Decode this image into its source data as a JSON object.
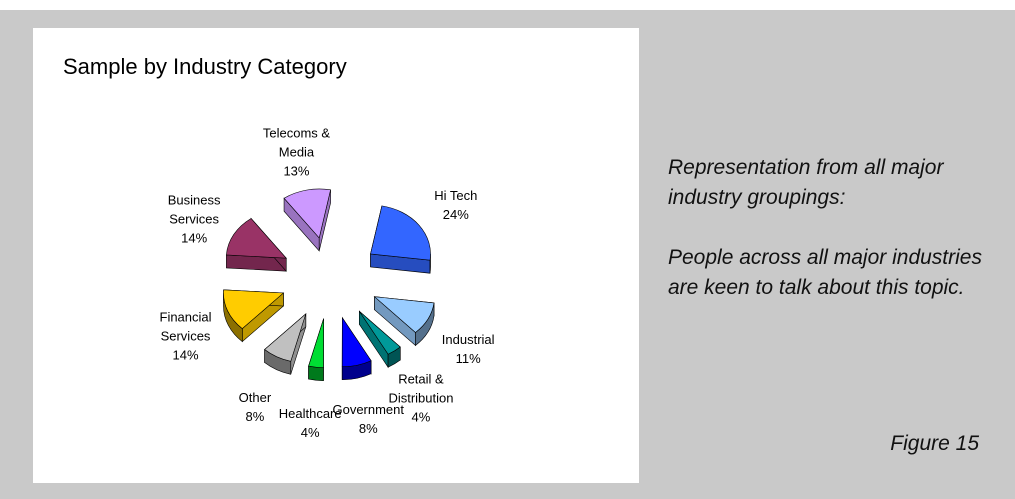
{
  "chart_data": {
    "type": "pie",
    "title": "Sample by Industry Category",
    "exploded": true,
    "style": "3d",
    "slices": [
      {
        "label_lines": [
          "Hi Tech"
        ],
        "value": 24,
        "value_label": "24%",
        "color": "#3366ff"
      },
      {
        "label_lines": [
          "Industrial"
        ],
        "value": 11,
        "value_label": "11%",
        "color": "#99ccff"
      },
      {
        "label_lines": [
          "Retail &",
          "Distribution"
        ],
        "value": 4,
        "value_label": "4%",
        "color": "#009999"
      },
      {
        "label_lines": [
          "Government"
        ],
        "value": 8,
        "value_label": "8%",
        "color": "#0000ff"
      },
      {
        "label_lines": [
          "Healthcare"
        ],
        "value": 4,
        "value_label": "4%",
        "color": "#00dd33"
      },
      {
        "label_lines": [
          "Other"
        ],
        "value": 8,
        "value_label": "8%",
        "color": "#c0c0c0"
      },
      {
        "label_lines": [
          "Financial",
          "Services"
        ],
        "value": 14,
        "value_label": "14%",
        "color": "#ffcc00"
      },
      {
        "label_lines": [
          "Business",
          "Services"
        ],
        "value": 14,
        "value_label": "14%",
        "color": "#993366"
      },
      {
        "label_lines": [
          "Telecoms &",
          "Media"
        ],
        "value": 13,
        "value_label": "13%",
        "color": "#cc99ff"
      }
    ]
  },
  "side_text": {
    "paragraph_1": "Representation from all major industry groupings:",
    "paragraph_2": "People across all major industries are keen to talk about this topic."
  },
  "figure_caption": "Figure 15"
}
